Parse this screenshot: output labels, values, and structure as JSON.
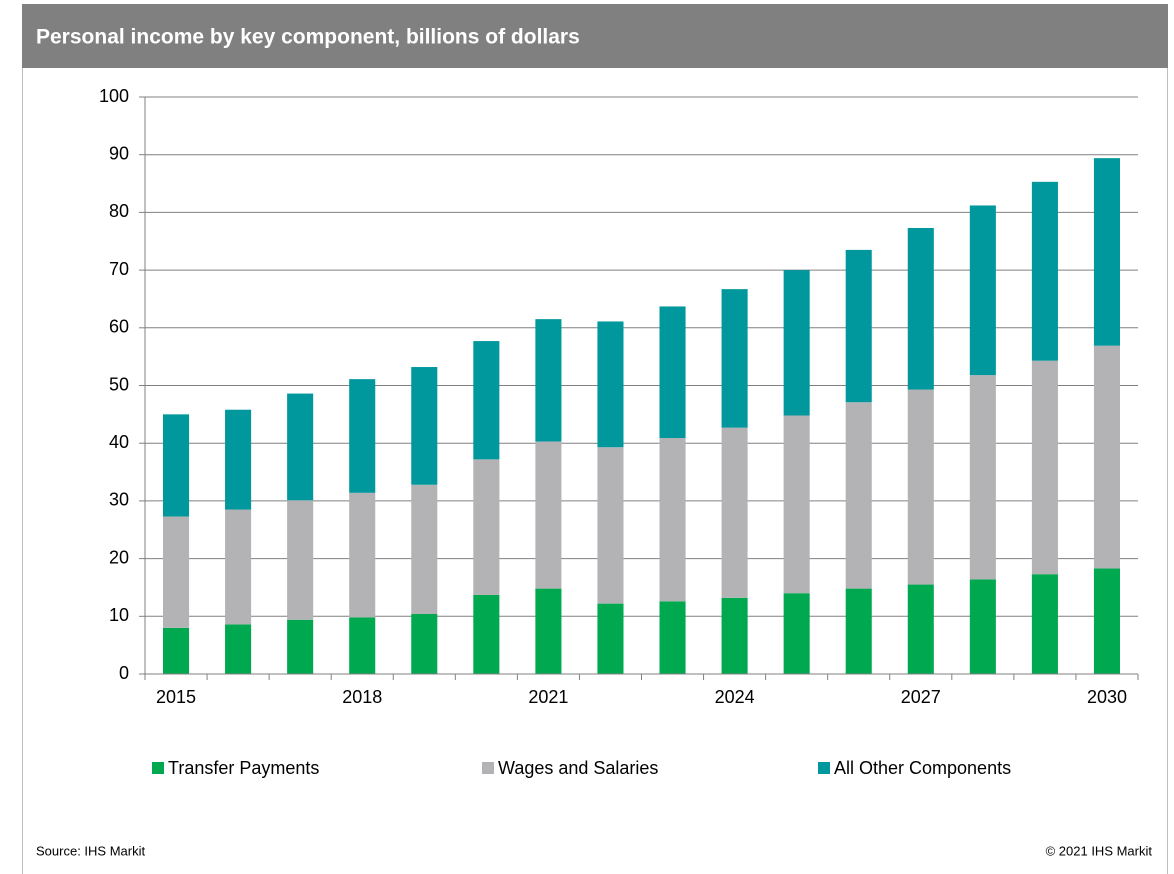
{
  "chart_data": {
    "type": "stacked_bar",
    "title": "Personal income by key component, billions of dollars",
    "categories": [
      "2015",
      null,
      null,
      "2018",
      null,
      null,
      "2021",
      null,
      null,
      "2024",
      null,
      null,
      "2027",
      null,
      null,
      "2030"
    ],
    "series": [
      {
        "name": "Transfer Payments",
        "color": "#00a84f",
        "values": [
          8.0,
          8.6,
          9.4,
          9.8,
          10.4,
          13.7,
          14.8,
          12.2,
          12.6,
          13.2,
          14.0,
          14.8,
          15.5,
          16.4,
          17.3,
          18.3
        ]
      },
      {
        "name": "Wages and Salaries",
        "color": "#b3b3b6",
        "values": [
          19.3,
          19.9,
          20.7,
          21.6,
          22.4,
          23.5,
          25.5,
          27.1,
          28.3,
          29.5,
          30.8,
          32.3,
          33.8,
          35.4,
          37.0,
          38.6
        ]
      },
      {
        "name": "All Other Components",
        "color": "#00979d",
        "values": [
          17.7,
          17.3,
          18.5,
          19.7,
          20.4,
          20.5,
          21.2,
          21.8,
          22.8,
          24.0,
          25.2,
          26.4,
          28.0,
          29.4,
          31.0,
          32.5
        ]
      }
    ],
    "ylim": [
      0,
      100
    ],
    "yticks": [
      0,
      10,
      20,
      30,
      40,
      50,
      60,
      70,
      80,
      90,
      100
    ],
    "grid": true,
    "legend": "bottom",
    "source": "Source: IHS Markit",
    "copyright": "© 2021 IHS Markit"
  }
}
